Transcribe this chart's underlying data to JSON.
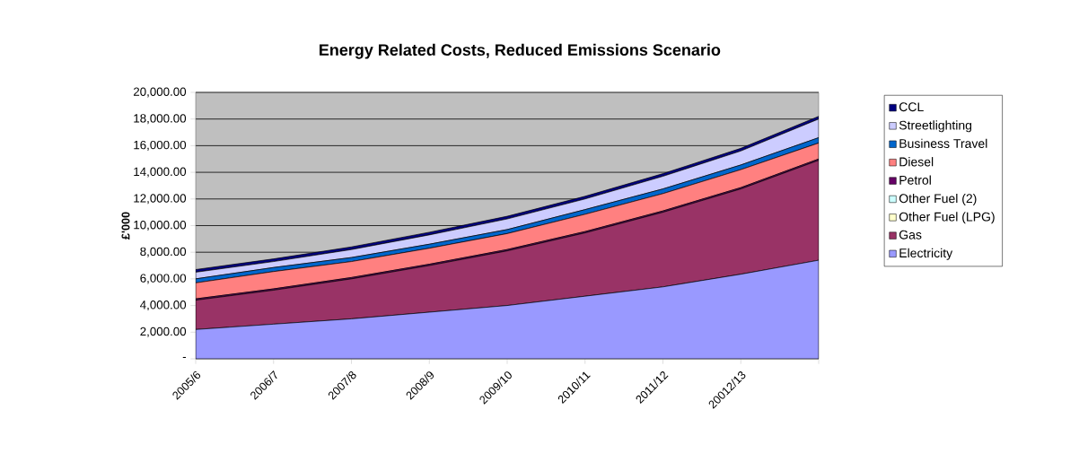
{
  "chart_data": {
    "type": "area",
    "title": "Energy Related Costs, Reduced Emissions Scenario",
    "ylabel": "£'000",
    "stacked": true,
    "grid": "y",
    "legend": "right",
    "categories": [
      "2005/6",
      "2006/7",
      "2007/8",
      "2008/9",
      "2009/10",
      "2010/11",
      "2011/12",
      "20012/13",
      null
    ],
    "ylim": [
      0,
      20000
    ],
    "yticks": [
      {
        "value": 0,
        "label": "-"
      },
      {
        "value": 2000,
        "label": "2,000.00"
      },
      {
        "value": 4000,
        "label": "4,000.00"
      },
      {
        "value": 6000,
        "label": "6,000.00"
      },
      {
        "value": 8000,
        "label": "8,000.00"
      },
      {
        "value": 10000,
        "label": "10,000.00"
      },
      {
        "value": 12000,
        "label": "12,000.00"
      },
      {
        "value": 14000,
        "label": "14,000.00"
      },
      {
        "value": 16000,
        "label": "16,000.00"
      },
      {
        "value": 18000,
        "label": "18,000.00"
      },
      {
        "value": 20000,
        "label": "20,000.00"
      }
    ],
    "series": [
      {
        "name": "Electricity",
        "color": "#9999ff",
        "values": [
          2200,
          2600,
          3000,
          3500,
          4000,
          4700,
          5400,
          6350,
          7400
        ]
      },
      {
        "name": "Gas",
        "color": "#993366",
        "values": [
          2200,
          2550,
          3000,
          3500,
          4100,
          4750,
          5600,
          6400,
          7500
        ]
      },
      {
        "name": "Other Fuel (LPG)",
        "color": "#ffffcc",
        "values": [
          null,
          null,
          null,
          null,
          null,
          null,
          null,
          null,
          null
        ]
      },
      {
        "name": "Other Fuel (2)",
        "color": "#ccffff",
        "values": [
          null,
          null,
          null,
          null,
          null,
          null,
          null,
          null,
          null
        ]
      },
      {
        "name": "Petrol",
        "color": "#660066",
        "values": [
          100,
          100,
          100,
          100,
          100,
          100,
          100,
          100,
          100
        ]
      },
      {
        "name": "Diesel",
        "color": "#ff8080",
        "values": [
          1200,
          1300,
          1200,
          1200,
          1200,
          1300,
          1300,
          1350,
          1200
        ]
      },
      {
        "name": "Business Travel",
        "color": "#0066cc",
        "values": [
          300,
          300,
          300,
          300,
          300,
          350,
          350,
          350,
          400
        ]
      },
      {
        "name": "Streetlighting",
        "color": "#ccccff",
        "values": [
          500,
          450,
          600,
          700,
          800,
          800,
          950,
          1050,
          1400
        ]
      },
      {
        "name": "CCL",
        "color": "#000080",
        "values": [
          200,
          200,
          200,
          200,
          200,
          200,
          200,
          200,
          200
        ]
      }
    ]
  }
}
